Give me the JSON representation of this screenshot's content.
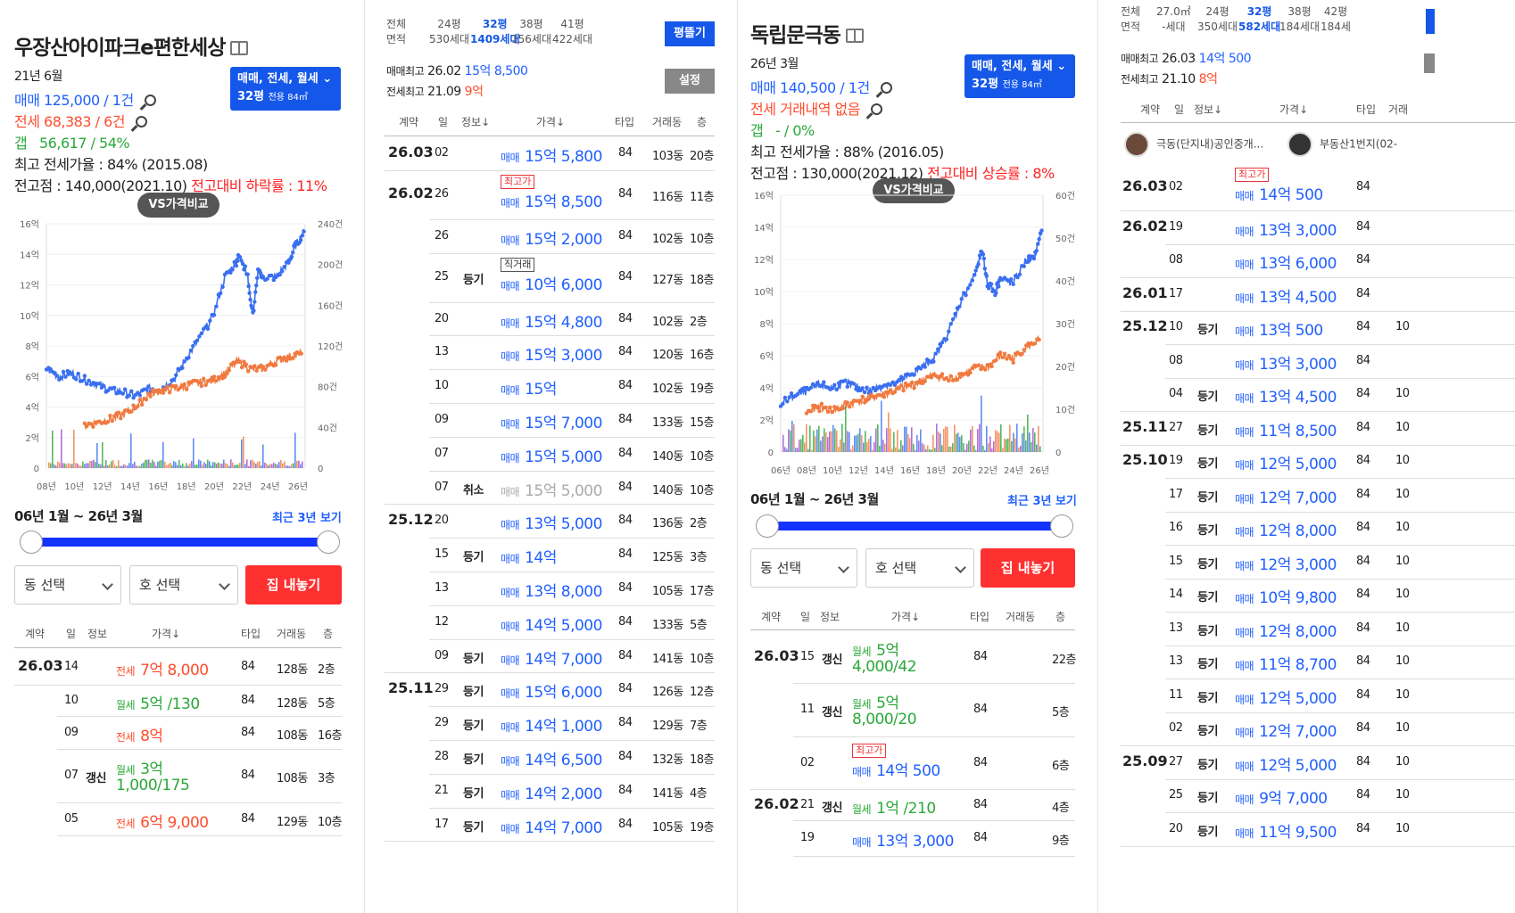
{
  "panel1": {
    "title": "우장산아이파크e편한세상",
    "date": "21년 6월",
    "sale_label": "매매",
    "sale_value": "125,000 / 1건",
    "jeonse_label": "전세",
    "jeonse_value": "68,383 / 6건",
    "gap_label": "갭",
    "gap_value": "56,617 / 54%",
    "max_jeonse_rate": "최고 전세가율 : 84% (2015.08)",
    "peak": "전고점 : 140,000(2021.10)",
    "peak_change": "전고대비 하락률 : 11%",
    "type_btn_line1": "매매, 전세, 월세",
    "type_btn_pyeong": "32평",
    "type_btn_area": "전용 84㎡",
    "vs_btn": "VS가격비교",
    "range": "06년 1월 ~ 26년 3월",
    "recent": "최근 3년 보기",
    "dong_select": "동 선택",
    "ho_select": "호 선택",
    "sell_btn": "집 내놓기",
    "headers": [
      "계약",
      "일",
      "정보",
      "가격↓",
      "타입",
      "거래동",
      "층"
    ],
    "rows": [
      {
        "month": "26.03",
        "day": "14",
        "info": "",
        "kind": "전세",
        "price": "7억 8,000",
        "extra": "",
        "type": "84",
        "dong": "128동",
        "floor": "2층"
      },
      {
        "month": "",
        "day": "10",
        "info": "",
        "kind": "월세",
        "price": "5억 /130",
        "extra": "",
        "type": "84",
        "dong": "128동",
        "floor": "5층"
      },
      {
        "month": "",
        "day": "09",
        "info": "",
        "kind": "전세",
        "price": "8억",
        "extra": "",
        "type": "84",
        "dong": "108동",
        "floor": "16층"
      },
      {
        "month": "",
        "day": "07",
        "info": "갱신",
        "kind": "월세",
        "price": "3억",
        "extra": "1,000/175",
        "type": "84",
        "dong": "108동",
        "floor": "3층"
      },
      {
        "month": "",
        "day": "05",
        "info": "",
        "kind": "전세",
        "price": "6억 9,000",
        "extra": "",
        "type": "84",
        "dong": "129동",
        "floor": "10층"
      }
    ]
  },
  "chart1": {
    "chart_data": {
      "type": "line",
      "x_ticks": [
        "08년",
        "10년",
        "12년",
        "14년",
        "16년",
        "18년",
        "20년",
        "22년",
        "24년",
        "26년"
      ],
      "y_ticks": [
        "16억",
        "14억",
        "12억",
        "10억",
        "8억",
        "6억",
        "4억",
        "2억",
        "0"
      ],
      "y2_ticks": [
        "240건",
        "200건",
        "160건",
        "120건",
        "80건",
        "40건",
        "0"
      ],
      "series": [
        {
          "color": "#3a6ff0",
          "x": [
            2006,
            2007,
            2008,
            2009,
            2010,
            2011,
            2012,
            2013,
            2014,
            2015,
            2016,
            2017,
            2018,
            2019,
            2020,
            2020.9,
            2021.2,
            2021.8,
            2022.2,
            2022.6,
            2023,
            2024,
            2025,
            2025.5,
            2026.2
          ],
          "values": [
            6.5,
            6.0,
            6.2,
            5.8,
            5.5,
            5.1,
            5.0,
            4.7,
            5.2,
            5.2,
            5.8,
            7.2,
            8.5,
            9.8,
            12.5,
            13.5,
            14.0,
            12.5,
            10.0,
            12.8,
            12.5,
            12.5,
            13.5,
            14.5,
            15.5
          ]
        },
        {
          "color": "#f07a40",
          "x": [
            2009,
            2010,
            2011,
            2012,
            2013,
            2014,
            2015,
            2016,
            2017,
            2018,
            2019,
            2020,
            2021,
            2022,
            2023,
            2024,
            2025,
            2026
          ],
          "values": [
            2.8,
            3.0,
            3.2,
            3.5,
            4.0,
            4.8,
            5.1,
            5.2,
            5.4,
            5.6,
            5.7,
            6.2,
            7.0,
            6.5,
            6.5,
            7.0,
            7.3,
            7.5
          ]
        }
      ]
    }
  },
  "panel2": {
    "hdr_area_label": "전체",
    "hdr_units_label": "면적",
    "types": [
      {
        "p": "24평",
        "u": "530세대"
      },
      {
        "p": "32평",
        "u": "1409세대"
      },
      {
        "p": "38평",
        "u": "156세대"
      },
      {
        "p": "41평",
        "u": "422세대"
      }
    ],
    "pyeong_btn": "평뜰기",
    "sale_max_label": "매매최고",
    "sale_max_date": "26.02",
    "sale_max_price": "15억 8,500",
    "jeonse_max_label": "전세최고",
    "jeonse_max_date": "21.09",
    "jeonse_max_price": "9억",
    "settings_btn": "설정",
    "headers": [
      "계약",
      "일",
      "정보↓",
      "가격↓",
      "타입",
      "거래동",
      "층"
    ],
    "rows": [
      {
        "month": "26.03",
        "day": "02",
        "info": "",
        "badge": "",
        "kind": "매매",
        "price": "15억 5,800",
        "type": "84",
        "dong": "103동",
        "floor": "20층"
      },
      {
        "month": "26.02",
        "day": "26",
        "info": "",
        "badge": "최고가",
        "kind": "매매",
        "price": "15억 8,500",
        "type": "84",
        "dong": "116동",
        "floor": "11층"
      },
      {
        "month": "",
        "day": "26",
        "info": "",
        "badge": "",
        "kind": "매매",
        "price": "15억 2,000",
        "type": "84",
        "dong": "102동",
        "floor": "10층"
      },
      {
        "month": "",
        "day": "25",
        "info": "등기",
        "badge": "직거래",
        "kind": "매매",
        "price": "10억 6,000",
        "type": "84",
        "dong": "127동",
        "floor": "18층"
      },
      {
        "month": "",
        "day": "20",
        "info": "",
        "badge": "",
        "kind": "매매",
        "price": "15억 4,800",
        "type": "84",
        "dong": "102동",
        "floor": "2층"
      },
      {
        "month": "",
        "day": "13",
        "info": "",
        "badge": "",
        "kind": "매매",
        "price": "15억 3,000",
        "type": "84",
        "dong": "120동",
        "floor": "16층"
      },
      {
        "month": "",
        "day": "10",
        "info": "",
        "badge": "",
        "kind": "매매",
        "price": "15억",
        "type": "84",
        "dong": "102동",
        "floor": "19층"
      },
      {
        "month": "",
        "day": "09",
        "info": "",
        "badge": "",
        "kind": "매매",
        "price": "15억 7,000",
        "type": "84",
        "dong": "133동",
        "floor": "15층"
      },
      {
        "month": "",
        "day": "07",
        "info": "",
        "badge": "",
        "kind": "매매",
        "price": "15억 5,000",
        "type": "84",
        "dong": "140동",
        "floor": "10층"
      },
      {
        "month": "",
        "day": "07",
        "info": "취소",
        "badge": "",
        "kind": "매매",
        "price": "15억 5,000",
        "type": "84",
        "dong": "140동",
        "floor": "10층",
        "cancel": true
      },
      {
        "month": "25.12",
        "day": "20",
        "info": "",
        "badge": "",
        "kind": "매매",
        "price": "13억 5,000",
        "type": "84",
        "dong": "136동",
        "floor": "2층"
      },
      {
        "month": "",
        "day": "15",
        "info": "등기",
        "badge": "",
        "kind": "매매",
        "price": "14억",
        "type": "84",
        "dong": "125동",
        "floor": "3층"
      },
      {
        "month": "",
        "day": "13",
        "info": "",
        "badge": "",
        "kind": "매매",
        "price": "13억 8,000",
        "type": "84",
        "dong": "105동",
        "floor": "17층"
      },
      {
        "month": "",
        "day": "12",
        "info": "",
        "badge": "",
        "kind": "매매",
        "price": "14억 5,000",
        "type": "84",
        "dong": "133동",
        "floor": "5층"
      },
      {
        "month": "",
        "day": "09",
        "info": "등기",
        "badge": "",
        "kind": "매매",
        "price": "14억 7,000",
        "type": "84",
        "dong": "141동",
        "floor": "10층"
      },
      {
        "month": "25.11",
        "day": "29",
        "info": "등기",
        "badge": "",
        "kind": "매매",
        "price": "15억 6,000",
        "type": "84",
        "dong": "126동",
        "floor": "12층"
      },
      {
        "month": "",
        "day": "29",
        "info": "등기",
        "badge": "",
        "kind": "매매",
        "price": "14억 1,000",
        "type": "84",
        "dong": "129동",
        "floor": "7층"
      },
      {
        "month": "",
        "day": "28",
        "info": "등기",
        "badge": "",
        "kind": "매매",
        "price": "14억 6,500",
        "type": "84",
        "dong": "132동",
        "floor": "18층"
      },
      {
        "month": "",
        "day": "21",
        "info": "등기",
        "badge": "",
        "kind": "매매",
        "price": "14억 2,000",
        "type": "84",
        "dong": "141동",
        "floor": "4층"
      },
      {
        "month": "",
        "day": "17",
        "info": "등기",
        "badge": "",
        "kind": "매매",
        "price": "14억 7,000",
        "type": "84",
        "dong": "105동",
        "floor": "19층"
      }
    ]
  },
  "panel3": {
    "title": "독립문극동",
    "date": "26년 3월",
    "sale_label": "매매",
    "sale_value": "140,500 / 1건",
    "jeonse_label": "전세",
    "jeonse_value": "거래내역 없음",
    "gap_label": "갭",
    "gap_value": "- / 0%",
    "max_jeonse_rate": "최고 전세가율 : 88% (2016.05)",
    "peak": "전고점 : 130,000(2021.12)",
    "peak_change": "전고대비 상승률 : 8%",
    "type_btn_line1": "매매, 전세, 월세",
    "type_btn_pyeong": "32평",
    "type_btn_area": "전용 84㎡",
    "vs_btn": "VS가격비교",
    "range": "06년 1월 ~ 26년 3월",
    "recent": "최근 3년 보기",
    "dong_select": "동 선택",
    "ho_select": "호 선택",
    "sell_btn": "집 내놓기",
    "headers": [
      "계약",
      "일",
      "정보",
      "가격↓",
      "타입",
      "거래동",
      "층"
    ],
    "rows": [
      {
        "month": "26.03",
        "day": "15",
        "info": "갱신",
        "badge": "",
        "kind": "월세",
        "price": "5억",
        "extra": "4,000/42",
        "type": "84",
        "floor": "22층"
      },
      {
        "month": "",
        "day": "11",
        "info": "갱신",
        "badge": "",
        "kind": "월세",
        "price": "5억",
        "extra": "8,000/20",
        "type": "84",
        "floor": "5층"
      },
      {
        "month": "",
        "day": "02",
        "info": "",
        "badge": "최고가",
        "kind": "매매",
        "price": "14억 500",
        "extra": "",
        "type": "84",
        "floor": "6층"
      },
      {
        "month": "26.02",
        "day": "21",
        "info": "갱신",
        "badge": "",
        "kind": "월세",
        "price": "1억 /210",
        "extra": "",
        "type": "84",
        "floor": "4층"
      },
      {
        "month": "",
        "day": "19",
        "info": "",
        "badge": "",
        "kind": "매매",
        "price": "13억 3,000",
        "extra": "",
        "type": "84",
        "floor": "9층"
      }
    ]
  },
  "chart3": {
    "chart_data": {
      "type": "line",
      "x_ticks": [
        "06년",
        "08년",
        "10년",
        "12년",
        "14년",
        "16년",
        "18년",
        "20년",
        "22년",
        "24년",
        "26년"
      ],
      "y_ticks": [
        "16억",
        "14억",
        "12억",
        "10억",
        "8억",
        "6억",
        "4억",
        "2억",
        "0"
      ],
      "y2_ticks": [
        "60건",
        "50건",
        "40건",
        "30건",
        "20건",
        "10건",
        "0"
      ],
      "series": [
        {
          "color": "#3a6ff0",
          "x": [
            2006,
            2007,
            2008,
            2009,
            2010,
            2011,
            2012,
            2013,
            2014,
            2015,
            2016,
            2017,
            2018,
            2019,
            2020,
            2021,
            2021.6,
            2022,
            2022.6,
            2023,
            2024,
            2025,
            2025.6,
            2026.2
          ],
          "values": [
            3.0,
            3.5,
            3.8,
            4.2,
            4.0,
            4.3,
            4.0,
            3.8,
            4.2,
            4.3,
            4.8,
            5.3,
            6.0,
            7.5,
            9.5,
            11.0,
            12.5,
            10.5,
            10.0,
            10.8,
            10.5,
            12.0,
            12.0,
            13.8
          ]
        },
        {
          "color": "#f07a40",
          "x": [
            2008,
            2009,
            2010,
            2011,
            2012,
            2013,
            2014,
            2015,
            2016,
            2017,
            2018,
            2019,
            2020,
            2021,
            2022,
            2023,
            2024,
            2025,
            2026
          ],
          "values": [
            2.5,
            2.8,
            2.6,
            2.9,
            3.2,
            3.4,
            3.6,
            3.9,
            4.1,
            4.5,
            4.8,
            4.5,
            4.8,
            5.2,
            5.3,
            6.0,
            5.8,
            6.5,
            7.0
          ]
        }
      ]
    }
  },
  "panel4": {
    "hdr_area_label": "전체",
    "hdr_units_label": "면적",
    "types": [
      {
        "p": "27.0㎡",
        "u": "-세대"
      },
      {
        "p": "24평",
        "u": "350세대"
      },
      {
        "p": "32평",
        "u": "582세대"
      },
      {
        "p": "38평",
        "u": "184세대"
      },
      {
        "p": "42평",
        "u": "184세"
      }
    ],
    "sale_max_label": "매매최고",
    "sale_max_date": "26.03",
    "sale_max_price": "14억 500",
    "jeonse_max_label": "전세최고",
    "jeonse_max_date": "21.10",
    "jeonse_max_price": "8억",
    "headers": [
      "계약",
      "일",
      "정보↓",
      "가격↓",
      "타입",
      "거래"
    ],
    "agent1": "극동(단지내)공인중개...",
    "agent2": "부동산1번지(02-",
    "rows": [
      {
        "month": "26.03",
        "day": "02",
        "info": "",
        "badge": "최고가",
        "kind": "매매",
        "price": "14억 500",
        "type": "84",
        "dong": ""
      },
      {
        "month": "26.02",
        "day": "19",
        "info": "",
        "badge": "",
        "kind": "매매",
        "price": "13억 3,000",
        "type": "84",
        "dong": ""
      },
      {
        "month": "",
        "day": "08",
        "info": "",
        "badge": "",
        "kind": "매매",
        "price": "13억 6,000",
        "type": "84",
        "dong": ""
      },
      {
        "month": "26.01",
        "day": "17",
        "info": "",
        "badge": "",
        "kind": "매매",
        "price": "13억 4,500",
        "type": "84",
        "dong": ""
      },
      {
        "month": "25.12",
        "day": "10",
        "info": "등기",
        "badge": "",
        "kind": "매매",
        "price": "13억 500",
        "type": "84",
        "dong": "10"
      },
      {
        "month": "",
        "day": "08",
        "info": "",
        "badge": "",
        "kind": "매매",
        "price": "13억 3,000",
        "type": "84",
        "dong": ""
      },
      {
        "month": "",
        "day": "04",
        "info": "등기",
        "badge": "",
        "kind": "매매",
        "price": "13억 4,500",
        "type": "84",
        "dong": "10"
      },
      {
        "month": "25.11",
        "day": "27",
        "info": "등기",
        "badge": "",
        "kind": "매매",
        "price": "11억 8,500",
        "type": "84",
        "dong": "10"
      },
      {
        "month": "25.10",
        "day": "19",
        "info": "등기",
        "badge": "",
        "kind": "매매",
        "price": "12억 5,000",
        "type": "84",
        "dong": "10"
      },
      {
        "month": "",
        "day": "17",
        "info": "등기",
        "badge": "",
        "kind": "매매",
        "price": "12억 7,000",
        "type": "84",
        "dong": "10"
      },
      {
        "month": "",
        "day": "16",
        "info": "등기",
        "badge": "",
        "kind": "매매",
        "price": "12억 8,000",
        "type": "84",
        "dong": "10"
      },
      {
        "month": "",
        "day": "15",
        "info": "등기",
        "badge": "",
        "kind": "매매",
        "price": "12억 3,000",
        "type": "84",
        "dong": "10"
      },
      {
        "month": "",
        "day": "14",
        "info": "등기",
        "badge": "",
        "kind": "매매",
        "price": "10억 9,800",
        "type": "84",
        "dong": "10"
      },
      {
        "month": "",
        "day": "13",
        "info": "등기",
        "badge": "",
        "kind": "매매",
        "price": "12억 8,000",
        "type": "84",
        "dong": "10"
      },
      {
        "month": "",
        "day": "13",
        "info": "등기",
        "badge": "",
        "kind": "매매",
        "price": "11억 8,700",
        "type": "84",
        "dong": "10"
      },
      {
        "month": "",
        "day": "11",
        "info": "등기",
        "badge": "",
        "kind": "매매",
        "price": "12억 5,000",
        "type": "84",
        "dong": "10"
      },
      {
        "month": "",
        "day": "02",
        "info": "등기",
        "badge": "",
        "kind": "매매",
        "price": "12억 7,000",
        "type": "84",
        "dong": "10"
      },
      {
        "month": "25.09",
        "day": "27",
        "info": "등기",
        "badge": "",
        "kind": "매매",
        "price": "12억 5,000",
        "type": "84",
        "dong": "10"
      },
      {
        "month": "",
        "day": "25",
        "info": "등기",
        "badge": "",
        "kind": "매매",
        "price": "9억 7,000",
        "type": "84",
        "dong": "10"
      },
      {
        "month": "",
        "day": "20",
        "info": "등기",
        "badge": "",
        "kind": "매매",
        "price": "11억 9,500",
        "type": "84",
        "dong": "10"
      }
    ]
  }
}
